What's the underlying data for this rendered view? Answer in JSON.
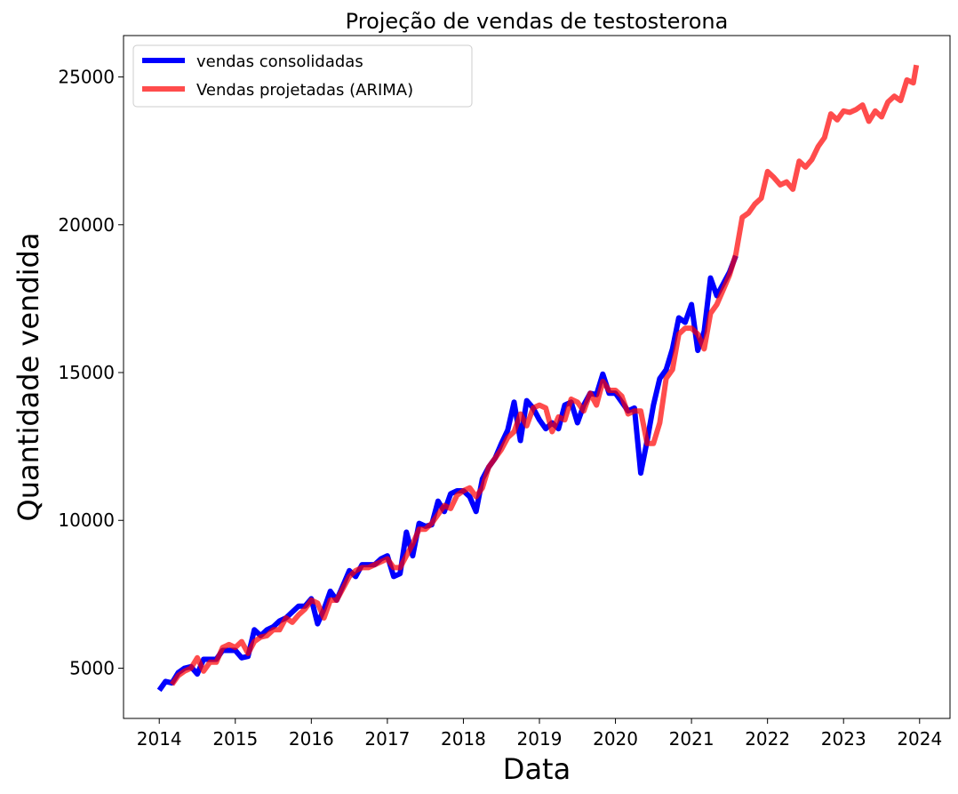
{
  "chart_data": {
    "type": "line",
    "title": "Projeção de vendas de testosterona",
    "xlabel": "Data",
    "ylabel": "Quantidade vendida",
    "xlim": [
      2013.53,
      2024.4
    ],
    "ylim": [
      3300,
      26400
    ],
    "xticks": [
      "2014",
      "2015",
      "2016",
      "2017",
      "2018",
      "2019",
      "2020",
      "2021",
      "2022",
      "2023",
      "2024"
    ],
    "yticks": [
      "5000",
      "10000",
      "15000",
      "20000",
      "25000"
    ],
    "grid": false,
    "legend_position": "top-left",
    "series": [
      {
        "name": "vendas consolidadas",
        "color": "#0000ff",
        "points": [
          [
            2014.0,
            4250
          ],
          [
            2014.083,
            4550
          ],
          [
            2014.167,
            4500
          ],
          [
            2014.25,
            4850
          ],
          [
            2014.333,
            5000
          ],
          [
            2014.417,
            5050
          ],
          [
            2014.5,
            4800
          ],
          [
            2014.583,
            5300
          ],
          [
            2014.667,
            5300
          ],
          [
            2014.75,
            5300
          ],
          [
            2014.833,
            5600
          ],
          [
            2014.917,
            5600
          ],
          [
            2015.0,
            5600
          ],
          [
            2015.083,
            5350
          ],
          [
            2015.167,
            5400
          ],
          [
            2015.25,
            6300
          ],
          [
            2015.333,
            6100
          ],
          [
            2015.417,
            6300
          ],
          [
            2015.5,
            6400
          ],
          [
            2015.583,
            6600
          ],
          [
            2015.667,
            6700
          ],
          [
            2015.75,
            6900
          ],
          [
            2015.833,
            7100
          ],
          [
            2015.917,
            7100
          ],
          [
            2016.0,
            7350
          ],
          [
            2016.083,
            6500
          ],
          [
            2016.167,
            7000
          ],
          [
            2016.25,
            7600
          ],
          [
            2016.333,
            7300
          ],
          [
            2016.417,
            7800
          ],
          [
            2016.5,
            8300
          ],
          [
            2016.583,
            8100
          ],
          [
            2016.667,
            8500
          ],
          [
            2016.75,
            8500
          ],
          [
            2016.833,
            8500
          ],
          [
            2016.917,
            8700
          ],
          [
            2017.0,
            8800
          ],
          [
            2017.083,
            8100
          ],
          [
            2017.167,
            8200
          ],
          [
            2017.25,
            9600
          ],
          [
            2017.333,
            8800
          ],
          [
            2017.417,
            9900
          ],
          [
            2017.5,
            9800
          ],
          [
            2017.583,
            9850
          ],
          [
            2017.667,
            10650
          ],
          [
            2017.75,
            10300
          ],
          [
            2017.833,
            10900
          ],
          [
            2017.917,
            11000
          ],
          [
            2018.0,
            11000
          ],
          [
            2018.083,
            10800
          ],
          [
            2018.167,
            10300
          ],
          [
            2018.25,
            11400
          ],
          [
            2018.333,
            11800
          ],
          [
            2018.417,
            12100
          ],
          [
            2018.5,
            12600
          ],
          [
            2018.583,
            13050
          ],
          [
            2018.667,
            14000
          ],
          [
            2018.75,
            12700
          ],
          [
            2018.833,
            14050
          ],
          [
            2018.917,
            13800
          ],
          [
            2019.0,
            13400
          ],
          [
            2019.083,
            13100
          ],
          [
            2019.167,
            13300
          ],
          [
            2019.25,
            13100
          ],
          [
            2019.333,
            13900
          ],
          [
            2019.417,
            14000
          ],
          [
            2019.5,
            13300
          ],
          [
            2019.583,
            13900
          ],
          [
            2019.667,
            14300
          ],
          [
            2019.75,
            14250
          ],
          [
            2019.833,
            14950
          ],
          [
            2019.917,
            14300
          ],
          [
            2020.0,
            14300
          ],
          [
            2020.083,
            14000
          ],
          [
            2020.167,
            13700
          ],
          [
            2020.25,
            13800
          ],
          [
            2020.333,
            11600
          ],
          [
            2020.417,
            12700
          ],
          [
            2020.5,
            13900
          ],
          [
            2020.583,
            14800
          ],
          [
            2020.667,
            15100
          ],
          [
            2020.75,
            15800
          ],
          [
            2020.833,
            16850
          ],
          [
            2020.917,
            16700
          ],
          [
            2021.0,
            17300
          ],
          [
            2021.083,
            15750
          ],
          [
            2021.167,
            16400
          ],
          [
            2021.25,
            18200
          ],
          [
            2021.333,
            17600
          ],
          [
            2021.417,
            18000
          ],
          [
            2021.5,
            18400
          ],
          [
            2021.583,
            18950
          ]
        ]
      },
      {
        "name": "Vendas projetadas (ARIMA)",
        "color": "#ff0000",
        "points": [
          [
            2014.167,
            4450
          ],
          [
            2014.25,
            4750
          ],
          [
            2014.333,
            4900
          ],
          [
            2014.417,
            5000
          ],
          [
            2014.5,
            5350
          ],
          [
            2014.583,
            4900
          ],
          [
            2014.667,
            5200
          ],
          [
            2014.75,
            5200
          ],
          [
            2014.833,
            5700
          ],
          [
            2014.917,
            5800
          ],
          [
            2015.0,
            5700
          ],
          [
            2015.083,
            5900
          ],
          [
            2015.167,
            5500
          ],
          [
            2015.25,
            5900
          ],
          [
            2015.333,
            6050
          ],
          [
            2015.417,
            6100
          ],
          [
            2015.5,
            6300
          ],
          [
            2015.583,
            6300
          ],
          [
            2015.667,
            6700
          ],
          [
            2015.75,
            6550
          ],
          [
            2015.833,
            6800
          ],
          [
            2015.917,
            7000
          ],
          [
            2016.0,
            7300
          ],
          [
            2016.083,
            7200
          ],
          [
            2016.167,
            6700
          ],
          [
            2016.25,
            7300
          ],
          [
            2016.333,
            7300
          ],
          [
            2016.417,
            7700
          ],
          [
            2016.5,
            8100
          ],
          [
            2016.583,
            8300
          ],
          [
            2016.667,
            8400
          ],
          [
            2016.75,
            8400
          ],
          [
            2016.833,
            8500
          ],
          [
            2016.917,
            8600
          ],
          [
            2017.0,
            8700
          ],
          [
            2017.083,
            8400
          ],
          [
            2017.167,
            8400
          ],
          [
            2017.25,
            8800
          ],
          [
            2017.333,
            9200
          ],
          [
            2017.417,
            9700
          ],
          [
            2017.5,
            9700
          ],
          [
            2017.583,
            9900
          ],
          [
            2017.667,
            10200
          ],
          [
            2017.75,
            10500
          ],
          [
            2017.833,
            10400
          ],
          [
            2017.917,
            10850
          ],
          [
            2018.0,
            11000
          ],
          [
            2018.083,
            11100
          ],
          [
            2018.167,
            10800
          ],
          [
            2018.25,
            11100
          ],
          [
            2018.333,
            11800
          ],
          [
            2018.417,
            12100
          ],
          [
            2018.5,
            12400
          ],
          [
            2018.583,
            12800
          ],
          [
            2018.667,
            13000
          ],
          [
            2018.75,
            13600
          ],
          [
            2018.833,
            13200
          ],
          [
            2018.917,
            13800
          ],
          [
            2019.0,
            13900
          ],
          [
            2019.083,
            13800
          ],
          [
            2019.167,
            13000
          ],
          [
            2019.25,
            13500
          ],
          [
            2019.333,
            13400
          ],
          [
            2019.417,
            14100
          ],
          [
            2019.5,
            14000
          ],
          [
            2019.583,
            13700
          ],
          [
            2019.667,
            14300
          ],
          [
            2019.75,
            13900
          ],
          [
            2019.833,
            14700
          ],
          [
            2019.917,
            14400
          ],
          [
            2020.0,
            14400
          ],
          [
            2020.083,
            14200
          ],
          [
            2020.167,
            13600
          ],
          [
            2020.25,
            13700
          ],
          [
            2020.333,
            13700
          ],
          [
            2020.417,
            12600
          ],
          [
            2020.5,
            12600
          ],
          [
            2020.583,
            13300
          ],
          [
            2020.667,
            14800
          ],
          [
            2020.75,
            15100
          ],
          [
            2020.833,
            16300
          ],
          [
            2020.917,
            16500
          ],
          [
            2021.0,
            16500
          ],
          [
            2021.083,
            16300
          ],
          [
            2021.167,
            15800
          ],
          [
            2021.25,
            17000
          ],
          [
            2021.333,
            17300
          ],
          [
            2021.417,
            17800
          ],
          [
            2021.5,
            18300
          ],
          [
            2021.583,
            19000
          ],
          [
            2021.667,
            20250
          ],
          [
            2021.75,
            20400
          ],
          [
            2021.833,
            20700
          ],
          [
            2021.917,
            20900
          ],
          [
            2022.0,
            21800
          ],
          [
            2022.083,
            21600
          ],
          [
            2022.167,
            21350
          ],
          [
            2022.25,
            21450
          ],
          [
            2022.333,
            21200
          ],
          [
            2022.417,
            22150
          ],
          [
            2022.5,
            21950
          ],
          [
            2022.583,
            22200
          ],
          [
            2022.667,
            22650
          ],
          [
            2022.75,
            22950
          ],
          [
            2022.833,
            23750
          ],
          [
            2022.917,
            23550
          ],
          [
            2023.0,
            23850
          ],
          [
            2023.083,
            23800
          ],
          [
            2023.167,
            23900
          ],
          [
            2023.25,
            24050
          ],
          [
            2023.333,
            23500
          ],
          [
            2023.417,
            23850
          ],
          [
            2023.5,
            23650
          ],
          [
            2023.583,
            24150
          ],
          [
            2023.667,
            24350
          ],
          [
            2023.75,
            24200
          ],
          [
            2023.833,
            24900
          ],
          [
            2023.917,
            24800
          ],
          [
            2023.958,
            25400
          ]
        ]
      }
    ]
  }
}
